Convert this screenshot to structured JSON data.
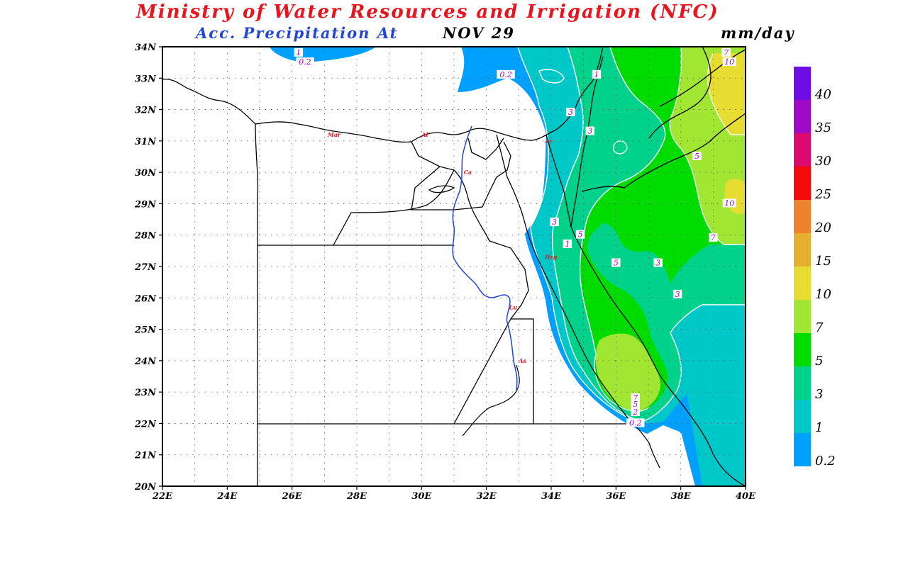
{
  "header": {
    "title": "Ministry of Water Resources and Irrigation (NFC)",
    "subtitle": "Acc. Precipitation  At",
    "date": "NOV 29",
    "units": "mm/day"
  },
  "map": {
    "lat_labels": [
      "34N",
      "33N",
      "32N",
      "31N",
      "30N",
      "29N",
      "28N",
      "27N",
      "26N",
      "25N",
      "24N",
      "23N",
      "22N",
      "21N",
      "20N"
    ],
    "lon_labels": [
      "22E",
      "24E",
      "26E",
      "28E",
      "30E",
      "32E",
      "34E",
      "36E",
      "38E",
      "40E"
    ],
    "extent": {
      "lon_min": 22,
      "lon_max": 40,
      "lat_min": 20,
      "lat_max": 34
    },
    "contour_labels": [
      "1",
      "0.2",
      "0.2",
      "1",
      "3",
      "3",
      "5",
      "7",
      "10",
      "10",
      "5",
      "3",
      "1",
      "5",
      "7",
      "3",
      "3",
      "7",
      "5",
      "2",
      "0.2"
    ],
    "station_labels": [
      "Mar",
      "Al",
      "Ar",
      "Ca",
      "Hrg",
      "Lu",
      "As"
    ]
  },
  "legend": {
    "bins": [
      {
        "label": "40",
        "color": "#6e0ee6"
      },
      {
        "label": "35",
        "color": "#9e0ac8"
      },
      {
        "label": "30",
        "color": "#dc0a6e"
      },
      {
        "label": "25",
        "color": "#f50a0a"
      },
      {
        "label": "20",
        "color": "#f0822d"
      },
      {
        "label": "15",
        "color": "#e6af2d"
      },
      {
        "label": "10",
        "color": "#e6dc32"
      },
      {
        "label": "7",
        "color": "#a0e632"
      },
      {
        "label": "5",
        "color": "#00dc00"
      },
      {
        "label": "3",
        "color": "#00d28c"
      },
      {
        "label": "1",
        "color": "#00c8c8"
      },
      {
        "label": "0.2",
        "color": "#00a0ff"
      }
    ]
  },
  "colors": {
    "title": "#e8141e",
    "subtitle": "#2346d6",
    "nile": "#2346d6",
    "stations": "#e8141e",
    "contour_label_text": "#9e0ac8"
  }
}
